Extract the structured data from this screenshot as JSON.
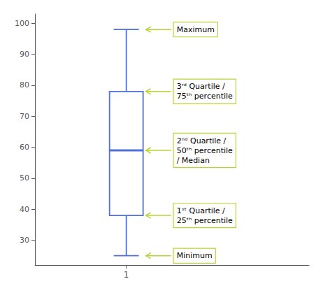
{
  "chart_data": {
    "type": "box",
    "x": [
      1
    ],
    "whisker_low": [
      25
    ],
    "q1": [
      38
    ],
    "median": [
      59
    ],
    "q3": [
      78
    ],
    "whisker_high": [
      98
    ],
    "xlim": [
      0.5,
      2.0
    ],
    "xticks": [
      1
    ],
    "ylim": [
      22,
      103
    ],
    "yticks": [
      30,
      40,
      50,
      60,
      70,
      80,
      90,
      100
    ],
    "grid": false,
    "annotations": [
      {
        "text": "Maximum",
        "y": 98
      },
      {
        "text": "3ʳᵈ Quartile /\n75ᵗʰ percentile",
        "y": 78
      },
      {
        "text": "2ⁿᵈ Quartile /\n50ᵗʰ percentile\n/ Median",
        "y": 59
      },
      {
        "text": "1ˢᵗ Quartile /\n25ᵗʰ percentile",
        "y": 38
      },
      {
        "text": "Minimum",
        "y": 25
      }
    ]
  }
}
